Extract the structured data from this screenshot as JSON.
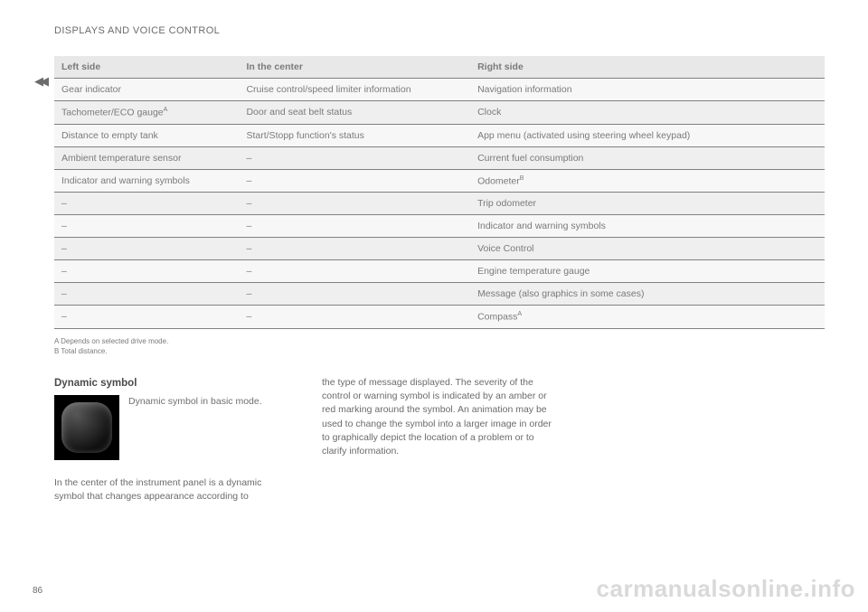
{
  "header": {
    "section_title": "DISPLAYS AND VOICE CONTROL"
  },
  "continued_marker": "◀◀",
  "table": {
    "columns": [
      "Left side",
      "In the center",
      "Right side"
    ],
    "rows": [
      [
        "Gear indicator",
        "Cruise control/speed limiter information",
        "Navigation information"
      ],
      [
        "Tachometer/ECO gauge<sup>A</sup>",
        "Door and seat belt status",
        "Clock"
      ],
      [
        "Distance to empty tank",
        "Start/Stopp function's status",
        "App menu (activated using steering wheel keypad)"
      ],
      [
        "Ambient temperature sensor",
        "–",
        "Current fuel consumption"
      ],
      [
        "Indicator and warning symbols",
        "–",
        "Odometer<sup>B</sup>"
      ],
      [
        "–",
        "–",
        "Trip odometer"
      ],
      [
        "–",
        "–",
        "Indicator and warning symbols"
      ],
      [
        "–",
        "–",
        "Voice Control"
      ],
      [
        "–",
        "–",
        "Engine temperature gauge"
      ],
      [
        "–",
        "–",
        "Message (also graphics in some cases)"
      ],
      [
        "–",
        "–",
        "Compass<sup>A</sup>"
      ]
    ]
  },
  "footnotes": {
    "a": "A  Depends on selected drive mode.",
    "b": "B  Total distance."
  },
  "dynamic_symbol": {
    "heading": "Dynamic symbol",
    "caption": "Dynamic symbol in basic mode.",
    "para1": "In the center of the instrument panel is a dynamic symbol that changes appearance according to",
    "para2": "the type of message displayed. The severity of the control or warning symbol is indicated by an amber or red marking around the symbol. An animation may be used to change the symbol into a larger image in order to graphically depict the location of a problem or to clarify information."
  },
  "page_number": "86",
  "watermark": "carmanualsonline.info"
}
